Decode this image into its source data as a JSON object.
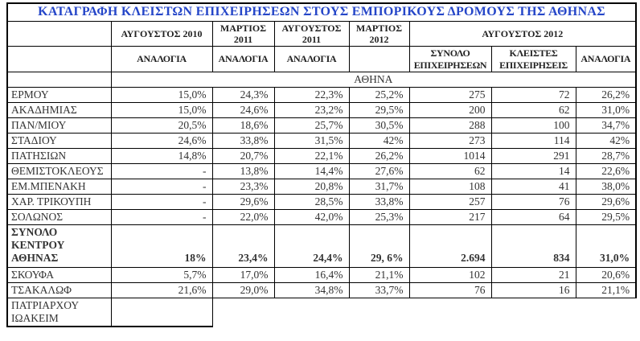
{
  "title": "ΚΑΤΑΓΡΑΦΗ ΚΛΕΙΣΤΩΝ ΕΠΙΧΕΙΡΗΣΕΩΝ ΣΤΟΥΣ ΕΜΠΟΡΙΚΟΥΣ ΔΡΟΜΟΥΣ ΤΗΣ ΑΘΗΝΑΣ",
  "colors": {
    "title_blue": "#2546C8",
    "border_black": "#000000",
    "body_text": "#333333"
  },
  "header": {
    "periods": [
      "ΑΥΓΟΥΣΤΟΣ 2010",
      "ΜΑΡΤΙΟΣ 2011",
      "ΑΥΓΟΥΣΤΟΣ 2011",
      "ΜΑΡΤΙΟΣ 2012",
      "ΑΥΓΟΥΣΤΟΣ 2012"
    ],
    "sub": [
      "ΑΝΑΛΟΓΙΑ",
      "ΑΝΑΛΟΓΙΑ",
      "ΑΝΑΛΟΓΙΑ",
      "",
      "ΣΥΝΟΛΟ ΕΠΙΧΕΙΡΗΣΕΩΝ",
      "ΚΛΕΙΣΤΕΣ ΕΠΙΧΕΙΡΗΣΕΙΣ",
      "ΑΝΑΛΟΓΙΑ"
    ]
  },
  "section_label": "ΑΘΗΝΑ",
  "rows": [
    {
      "name": "ΕΡΜΟΥ",
      "values": [
        "15,0%",
        "24,3%",
        "22,3%",
        "25,2%",
        "275",
        "72",
        "26,2%"
      ]
    },
    {
      "name": "ΑΚΑΔΗΜΙΑΣ",
      "values": [
        "15,0%",
        "24,6%",
        "23,2%",
        "29,5%",
        "200",
        "62",
        "31,0%"
      ]
    },
    {
      "name": "ΠΑΝ/ΜΙΟΥ",
      "values": [
        "20,5%",
        "18,6%",
        "25,7%",
        "30,5%",
        "288",
        "100",
        "34,7%"
      ]
    },
    {
      "name": "ΣΤΑΔΙΟΥ",
      "values": [
        "24,6%",
        "33,8%",
        "31,5%",
        "42%",
        "273",
        "114",
        "42%"
      ]
    },
    {
      "name": "ΠΑΤΗΣΙΩΝ",
      "values": [
        "14,8%",
        "20,7%",
        "22,1%",
        "26,2%",
        "1014",
        "291",
        "28,7%"
      ]
    },
    {
      "name": "ΘΕΜΙΣΤΟΚΛΕΟΥΣ",
      "values": [
        "-",
        "13,8%",
        "14,4%",
        "27,6%",
        "62",
        "14",
        "22,6%"
      ]
    },
    {
      "name": "ΕΜ.ΜΠΕΝΑΚΗ",
      "values": [
        "-",
        "23,3%",
        "20,8%",
        "31,7%",
        "108",
        "41",
        "38,0%"
      ]
    },
    {
      "name": "ΧΑΡ. ΤΡΙΚΟΥΠΗ",
      "values": [
        "-",
        "29,6%",
        "28,5%",
        "33,8%",
        "257",
        "76",
        "29,6%"
      ]
    },
    {
      "name": "ΣΟΛΩΝΟΣ",
      "values": [
        "-",
        "22,0%",
        "42,0%",
        "25,3%",
        "217",
        "64",
        "29,5%"
      ]
    },
    {
      "name": "ΣΥΝΟΛΟ ΚΕΝΤΡΟΥ ΑΘΗΝΑΣ",
      "values": [
        "18%",
        "23,4%",
        "24,4%",
        "29, 6%",
        "2.694",
        "834",
        "31,0%"
      ],
      "bold": true
    },
    {
      "name": "ΣΚΟΥΦΑ",
      "values": [
        "5,7%",
        "17,0%",
        "16,4%",
        "21,1%",
        "102",
        "21",
        "20,6%"
      ]
    },
    {
      "name": "ΤΣΑΚΑΛΩΦ",
      "values": [
        "21,6%",
        "29,0%",
        "34,8%",
        "33,7%",
        "76",
        "16",
        "21,1%"
      ]
    },
    {
      "name": "ΠΑΤΡΙΑΡΧΟΥ ΙΩΑΚΕΙΜ",
      "values": [
        ""
      ],
      "partial": true
    }
  ]
}
